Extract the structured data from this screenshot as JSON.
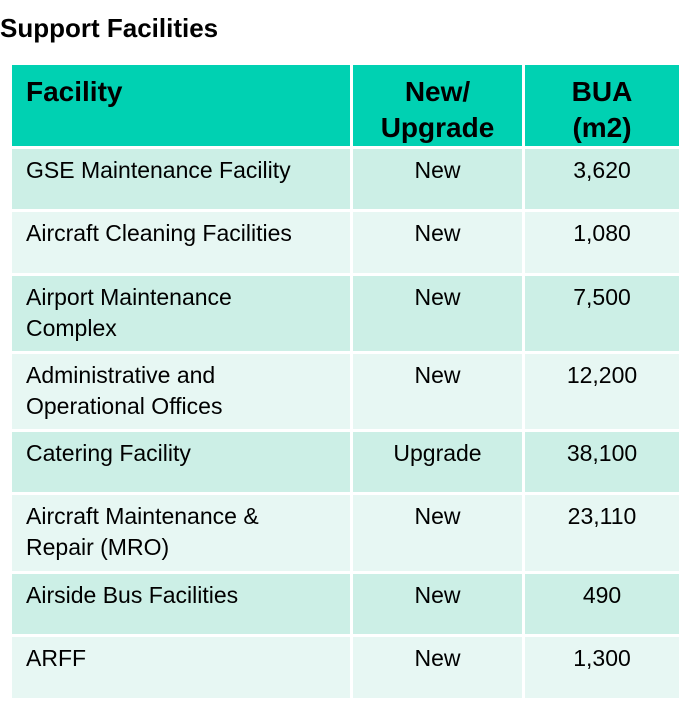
{
  "title": "Support Facilities",
  "table": {
    "headers": {
      "facility": "Facility",
      "status_line1": "New/",
      "status_line2": "Upgrade",
      "bua_line1": "BUA",
      "bua_line2": "(m2)"
    },
    "rows": [
      {
        "facility_line1": "GSE Maintenance Facility",
        "facility_line2": "",
        "status": "New",
        "bua": "3,620"
      },
      {
        "facility_line1": "Aircraft Cleaning Facilities",
        "facility_line2": "",
        "status": "New",
        "bua": "1,080"
      },
      {
        "facility_line1": "Airport Maintenance",
        "facility_line2": "Complex",
        "status": "New",
        "bua": "7,500"
      },
      {
        "facility_line1": "Administrative and",
        "facility_line2": "Operational Offices",
        "status": "New",
        "bua": "12,200"
      },
      {
        "facility_line1": "Catering Facility",
        "facility_line2": "",
        "status": "Upgrade",
        "bua": "38,100"
      },
      {
        "facility_line1": "Aircraft Maintenance &",
        "facility_line2": "Repair (MRO)",
        "status": "New",
        "bua": "23,110"
      },
      {
        "facility_line1": "Airside Bus Facilities",
        "facility_line2": "",
        "status": "New",
        "bua": "490"
      },
      {
        "facility_line1": "ARFF",
        "facility_line2": "",
        "status": "New",
        "bua": "1,300"
      }
    ]
  },
  "colors": {
    "header_bg": "#00d1b2",
    "row_dark_bg": "#ccefe6",
    "row_light_bg": "#e7f7f3"
  }
}
